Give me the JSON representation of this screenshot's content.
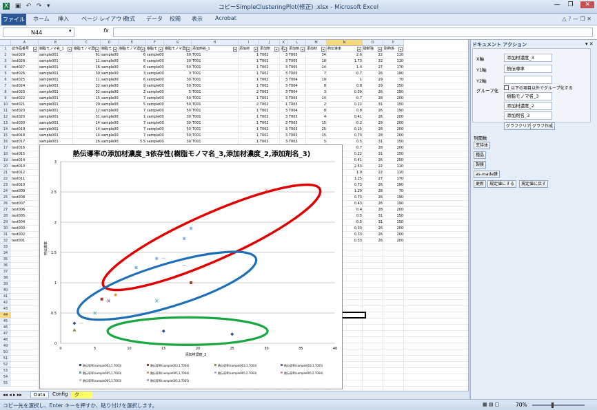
{
  "window": {
    "title": "コピーSimpleClusteringPlot(修正) .xlsx - Microsoft Excel"
  },
  "ribbon_tabs": [
    "ファイル",
    "ホーム",
    "挿入",
    "ページ レイアウト",
    "数式",
    "データ",
    "校閲",
    "表示",
    "Acrobat"
  ],
  "formula": {
    "namebox": "N44",
    "fx": "fx"
  },
  "columns": [
    "A",
    "B",
    "C",
    "D",
    "E",
    "F",
    "G",
    "H",
    "I",
    "J",
    "K",
    "L",
    "M",
    "N",
    "O",
    "P"
  ],
  "headers": [
    "試作品番号",
    "樹脂モノマ名_1",
    "樹脂モノマ濃度",
    "樹脂モ",
    "樹脂モノマ濃度",
    "樹脂モ",
    "樹脂モノマ濃度",
    "添加剤名_1",
    "添加材",
    "添加剤",
    "添",
    "添加剤",
    "添加材",
    "熱伝導率",
    "破断強",
    "耐熱係"
  ],
  "rows": [
    [
      "test029",
      "sample001",
      "61",
      "sample002",
      "6",
      "sample005",
      "50",
      "T001",
      "1",
      "T002",
      "3",
      "T005",
      "34",
      "2.6",
      "22",
      "110"
    ],
    [
      "test028",
      "sample001",
      "11",
      "sample002",
      "6",
      "sample005",
      "30",
      "T001",
      "1",
      "T002",
      "3",
      "T005",
      "18",
      "1.73",
      "22",
      "110"
    ],
    [
      "test027",
      "sample001",
      "16",
      "sample002",
      "6",
      "sample005",
      "50",
      "T001",
      "1",
      "T002",
      "3",
      "T005",
      "14",
      "1.4",
      "27",
      "170"
    ],
    [
      "test026",
      "sample001",
      "30",
      "sample002",
      "3",
      "sample003",
      "3",
      "T001",
      "1",
      "T002",
      "3",
      "T005",
      "7",
      "0.7",
      "26",
      "190"
    ],
    [
      "test025",
      "sample001",
      "11",
      "sample002",
      "6",
      "sample003",
      "30",
      "T001",
      "1",
      "T002",
      "3",
      "T004",
      "19",
      "1",
      "29",
      "70"
    ],
    [
      "test024",
      "sample001",
      "22",
      "sample002",
      "9",
      "sample005",
      "50",
      "T001",
      "1",
      "T002",
      "3",
      "T004",
      "8",
      "0.8",
      "29",
      "150"
    ],
    [
      "test023",
      "sample001",
      "32",
      "sample002",
      "2",
      "sample005",
      "5",
      "T001",
      "2",
      "T002",
      "3",
      "T004",
      "3",
      "0.39",
      "26",
      "190"
    ],
    [
      "test022",
      "sample001",
      "15",
      "sample002",
      "7",
      "sample003",
      "50",
      "T001",
      "1",
      "T002",
      "3",
      "T003",
      "14",
      "0.7",
      "28",
      "200"
    ],
    [
      "test021",
      "sample001",
      "29",
      "sample002",
      "5",
      "sample005",
      "50",
      "T001",
      "2",
      "T002",
      "1",
      "T003",
      "2",
      "0.22",
      "31",
      "150"
    ],
    [
      "test020",
      "sample001",
      "12",
      "sample002",
      "7",
      "sample005",
      "50",
      "T001",
      "1",
      "T002",
      "3",
      "T004",
      "8",
      "0.8",
      "26",
      "190"
    ],
    [
      "test020",
      "sample001",
      "31",
      "sample002",
      "1",
      "sample003",
      "30",
      "T001",
      "1",
      "T002",
      "3",
      "T003",
      "4",
      "0.41",
      "26",
      "200"
    ],
    [
      "test030",
      "sample001",
      "14",
      "sample002",
      "7",
      "sample003",
      "30",
      "T001",
      "1",
      "T002",
      "3",
      "T003",
      "15",
      "0.2",
      "29",
      "200"
    ],
    [
      "test019",
      "sample001",
      "14",
      "sample002",
      "7",
      "sample005",
      "50",
      "T001",
      "1",
      "T002",
      "3",
      "T003",
      "25",
      "0.15",
      "28",
      "200"
    ],
    [
      "test018",
      "sample001",
      "14",
      "sample002",
      "7",
      "sample005",
      "50",
      "T001",
      "1",
      "T002",
      "3",
      "T003",
      "15",
      "0.73",
      "28",
      "200"
    ],
    [
      "test017",
      "sample001",
      "26",
      "sample002",
      "5.5",
      "sample005",
      "30",
      "T001",
      "1",
      "T002",
      "3",
      "T003",
      "5",
      "0.5",
      "31",
      "150"
    ],
    [
      "test016",
      "sample001",
      "15",
      "sample002",
      "7",
      "sample003",
      "50",
      "T001",
      "1",
      "T002",
      "3",
      "T003",
      "14",
      "0.7",
      "28",
      "200"
    ],
    [
      "test015",
      "",
      "",
      "",
      "",
      "",
      "",
      "",
      "",
      "",
      "",
      "003",
      "2",
      "0.22",
      "31",
      "150"
    ],
    [
      "test014",
      "",
      "",
      "",
      "",
      "",
      "",
      "",
      "",
      "",
      "",
      "003",
      "4",
      "0.41",
      "26",
      "200"
    ],
    [
      "test013",
      "",
      "",
      "",
      "",
      "",
      "",
      "",
      "",
      "",
      "",
      "003",
      "30",
      "2.53",
      "22",
      "110"
    ],
    [
      "test012",
      "",
      "",
      "",
      "",
      "",
      "",
      "",
      "",
      "",
      "",
      "003",
      "19",
      "1.9",
      "22",
      "110"
    ],
    [
      "test011",
      "",
      "",
      "",
      "",
      "",
      "",
      "",
      "",
      "",
      "",
      "003",
      "11",
      "1.25",
      "27",
      "170"
    ],
    [
      "test010",
      "",
      "",
      "",
      "",
      "",
      "",
      "",
      "",
      "",
      "",
      "003",
      "5",
      "0.73",
      "26",
      "190"
    ],
    [
      "test009",
      "",
      "",
      "",
      "",
      "",
      "",
      "",
      "",
      "",
      "",
      "004",
      "18",
      "1.29",
      "28",
      "70"
    ],
    [
      "test008",
      "",
      "",
      "",
      "",
      "",
      "",
      "",
      "",
      "",
      "",
      "004",
      "6",
      "0.73",
      "26",
      "190"
    ],
    [
      "test007",
      "",
      "",
      "",
      "",
      "",
      "",
      "",
      "",
      "",
      "",
      "004",
      "4",
      "0.43",
      "26",
      "190"
    ],
    [
      "test006",
      "",
      "",
      "",
      "",
      "",
      "",
      "",
      "",
      "",
      "",
      "004",
      "15",
      "0.4",
      "28",
      "200"
    ],
    [
      "test005",
      "",
      "",
      "",
      "",
      "",
      "",
      "",
      "",
      "",
      "",
      "004",
      "5",
      "0.5",
      "31",
      "150"
    ],
    [
      "test004",
      "",
      "",
      "",
      "",
      "",
      "",
      "",
      "",
      "",
      "",
      "004",
      "5",
      "0.5",
      "31",
      "150"
    ],
    [
      "test003",
      "",
      "",
      "",
      "",
      "",
      "",
      "",
      "",
      "",
      "",
      "003",
      "3.5",
      "0.33",
      "26",
      "200"
    ],
    [
      "test002",
      "",
      "",
      "",
      "",
      "",
      "",
      "",
      "",
      "",
      "",
      "003",
      "2",
      "0.33",
      "26",
      "200"
    ],
    [
      "test001",
      "",
      "",
      "",
      "",
      "",
      "",
      "",
      "",
      "",
      "",
      "003",
      "2",
      "0.33",
      "26",
      "200"
    ]
  ],
  "row_numbers": [
    "1",
    "2",
    "3",
    "4",
    "5",
    "6",
    "7",
    "8",
    "9",
    "10",
    "11",
    "12",
    "13",
    "14",
    "15",
    "16",
    "17",
    "18",
    "19",
    "20",
    "21",
    "22",
    "23",
    "24",
    "25",
    "26",
    "27",
    "28",
    "29",
    "30",
    "31",
    "32",
    "33",
    "34",
    "35",
    "36",
    "37",
    "38",
    "39",
    "40",
    "41",
    "42",
    "43",
    "44",
    "45",
    "46",
    "47",
    "48",
    "49",
    "50",
    "51",
    "52",
    "53",
    "54",
    "55"
  ],
  "chart_data": {
    "type": "scatter",
    "title": "熱伝導率の添加材濃度_3依存性(樹脂モノマ名_3,添加材濃度_2,添加剤名_3)",
    "xlabel": "添加材濃度_3",
    "ylabel": "熱伝導率",
    "xlim": [
      0,
      40
    ],
    "ylim": [
      0,
      3
    ],
    "xticks": [
      "0",
      "5",
      "10",
      "15",
      "20",
      "25",
      "30",
      "35",
      "40"
    ],
    "yticks": [
      "0",
      "0.5",
      "1",
      "1.5",
      "2",
      "2.5",
      "3"
    ],
    "series": [
      {
        "name": "熱伝導率(sample003,1,T003)",
        "color": "#2e4c8f",
        "marker": "diamond",
        "points": [
          [
            2,
            0.33
          ],
          [
            15,
            0.2
          ],
          [
            25,
            0.15
          ]
        ]
      },
      {
        "name": "熱伝導率(sample003,1,T004)",
        "color": "#a53f2a",
        "marker": "square",
        "points": [
          [
            6,
            0.73
          ],
          [
            19,
            1
          ]
        ]
      },
      {
        "name": "熱伝導率(sample003,3,T003)",
        "color": "#6e9a3d",
        "marker": "triangle",
        "points": [
          [
            2,
            0.22
          ],
          [
            4,
            0.41
          ]
        ]
      },
      {
        "name": "熱伝導率(sample003,3,T005)",
        "color": "#7a5b9e",
        "marker": "x",
        "points": [
          [
            7,
            0.7
          ]
        ]
      },
      {
        "name": "熱伝導率(sample005,1,T003)",
        "color": "#4aa3c4",
        "marker": "star",
        "points": [
          [
            5,
            0.5
          ],
          [
            14,
            0.7
          ]
        ]
      },
      {
        "name": "熱伝導率(sample005,1,T004)",
        "color": "#e39a4a",
        "marker": "circle",
        "points": [
          [
            8,
            0.8
          ]
        ]
      },
      {
        "name": "熱伝導率(sample005,2,T003)",
        "color": "#9fb6dc",
        "marker": "dash",
        "points": [
          [
            18,
            1.29
          ],
          [
            15,
            1.4
          ]
        ]
      },
      {
        "name": "熱伝導率(sample005,2,T004)",
        "color": "#d99593",
        "marker": "plus",
        "points": [
          [
            30,
            2.53
          ]
        ]
      },
      {
        "name": "熱伝導率(sample005,3,T003)",
        "color": "#b7cc8f",
        "marker": "dash",
        "points": [
          [
            3,
            0.33
          ],
          [
            5,
            0.5
          ]
        ]
      },
      {
        "name": "熱伝導率(sample005,3,T005)",
        "color": "#8bb2e0",
        "marker": "square",
        "points": [
          [
            11,
            1.25
          ],
          [
            19,
            1.9
          ],
          [
            34,
            2.6
          ],
          [
            18,
            1.73
          ],
          [
            14,
            1.4
          ]
        ]
      }
    ],
    "legend": [
      [
        "熱伝導率(sample003,1,T003)",
        "熱伝導率(sample003,1,T004)",
        "熱伝導率(sample003,3,T003)",
        "熱伝導率(sample003,3,T005)"
      ],
      [
        "熱伝導率(sample005,1,T003)",
        "熱伝導率(sample005,1,T004)",
        "熱伝導率(sample005,2,T003)",
        "熱伝導率(sample005,2,T004)"
      ],
      [
        "熱伝導率(sample005,3,T003)",
        "熱伝導率(sample005,3,T005)"
      ]
    ],
    "annotations": [
      {
        "color": "#e00000",
        "label": "red-ellipse"
      },
      {
        "color": "#1f6fb6",
        "label": "blue-ellipse"
      },
      {
        "color": "#18a640",
        "label": "green-ellipse"
      }
    ]
  },
  "sheets": [
    "Data",
    "Config",
    "ク"
  ],
  "status": {
    "message": "コピー先を選択し、Enter キーを押すか、貼り付けを選択します。",
    "zoom": "70%"
  },
  "panel": {
    "title": "ドキュメント アクション",
    "x_label": "X軸",
    "x_value": "添加材濃度_3",
    "y1_label": "Y1軸",
    "y1_value": "熱伝導率",
    "y2_label": "Y2軸",
    "y2_value": "",
    "group_label": "グループ化",
    "group_check": "以下の項目以外でグループ化する",
    "group_items": [
      "樹脂モノマ名_3",
      "添加材濃度_2",
      "添加剤名_3"
    ],
    "clear_btn": "グラフクリア",
    "make_btn": "グラフ作成",
    "column_ops": "列関数",
    "ops": [
      "支持体",
      "種晶",
      "製膜",
      "as-made膜"
    ],
    "bottom_btns": [
      "更新",
      "規定値にする",
      "規定値に戻す"
    ]
  }
}
